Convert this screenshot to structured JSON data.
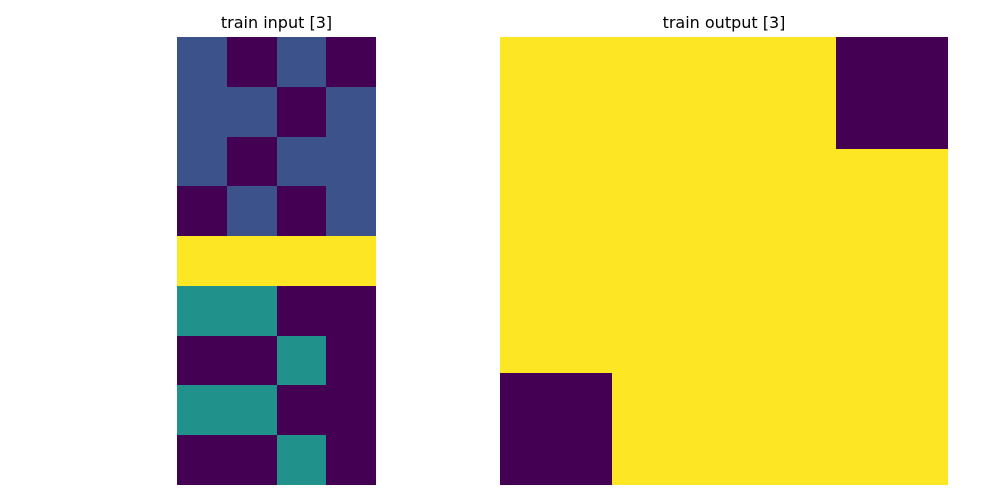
{
  "chart_data": [
    {
      "type": "heatmap",
      "title": "train input [3]",
      "rows": 9,
      "cols": 4,
      "values": [
        [
          1,
          0,
          1,
          0
        ],
        [
          1,
          1,
          0,
          1
        ],
        [
          1,
          0,
          1,
          1
        ],
        [
          0,
          1,
          0,
          1
        ],
        [
          4,
          4,
          4,
          4
        ],
        [
          2,
          2,
          0,
          0
        ],
        [
          0,
          0,
          2,
          0
        ],
        [
          2,
          2,
          0,
          0
        ],
        [
          0,
          0,
          2,
          0
        ]
      ],
      "palette": {
        "0": "#440154",
        "1": "#3b528b",
        "2": "#21918c",
        "4": "#fde725"
      },
      "grid": false,
      "axes": false
    },
    {
      "type": "heatmap",
      "title": "train output [3]",
      "rows": 4,
      "cols": 4,
      "values": [
        [
          1,
          1,
          1,
          0
        ],
        [
          1,
          1,
          1,
          1
        ],
        [
          1,
          1,
          1,
          1
        ],
        [
          0,
          1,
          1,
          1
        ]
      ],
      "palette": {
        "0": "#440154",
        "1": "#fde725"
      },
      "grid": false,
      "axes": false
    }
  ]
}
